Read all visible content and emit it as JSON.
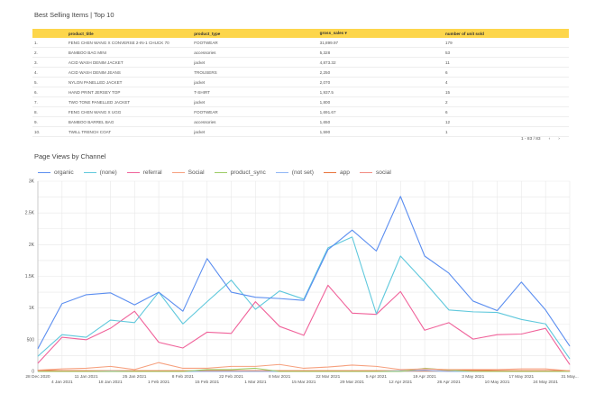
{
  "table": {
    "title": "Best Selling Items | Top 10",
    "columns": [
      "",
      "product_title",
      "product_type",
      "gross_sales ▾",
      "number of unit sold"
    ],
    "rows": [
      [
        "1.",
        "FENG CHEN WANG X CONVERSE 2-IN-1 CHUCK 70",
        "FOOTWEAR",
        "31,899.97",
        "179"
      ],
      [
        "2.",
        "BAMBOO BAG MINI",
        "accessories",
        "5,328",
        "53"
      ],
      [
        "3.",
        "ACID WASH DENIM JACKET",
        "jacket",
        "4,873.32",
        "11"
      ],
      [
        "4.",
        "ACID WASH DENIM JEANS",
        "TROUSERS",
        "2,250",
        "6"
      ],
      [
        "5.",
        "NYLON PANELLED JACKET",
        "jacket",
        "2,070",
        "4"
      ],
      [
        "6.",
        "HAND PRINT JERSEY TOP",
        "T-SHIRT",
        "1,937.5",
        "15"
      ],
      [
        "7.",
        "TWO TONE PANELLED JACKET",
        "jacket",
        "1,800",
        "2"
      ],
      [
        "8.",
        "FENG CHEN WANG X UGG",
        "FOOTWEAR",
        "1,691.67",
        "6"
      ],
      [
        "9.",
        "BAMBOO BARREL BAG",
        "accessories",
        "1,650",
        "12"
      ],
      [
        "10.",
        "TWILL TRENCH COAT",
        "jacket",
        "1,590",
        "1"
      ]
    ],
    "pagination": "1 - 83 / 83",
    "prev": "‹",
    "next": "›",
    "header_color": "#fdd64b"
  },
  "chart_data": {
    "type": "line",
    "title": "Page Views by Channel",
    "x": [
      "28 Dec 2020",
      "4 Jan 2021",
      "11 Jan 2021",
      "18 Jan 2021",
      "25 Jan 2021",
      "1 Feb 2021",
      "8 Feb 2021",
      "15 Feb 2021",
      "22 Feb 2021",
      "1 Mar 2021",
      "8 Mar 2021",
      "15 Mar 2021",
      "22 Mar 2021",
      "29 Mar 2021",
      "5 Apr 2021",
      "12 Apr 2021",
      "19 Apr 2021",
      "26 Apr 2021",
      "3 May 2021",
      "10 May 2021",
      "17 May 2021",
      "24 May 2021",
      "31 May..."
    ],
    "ylim": [
      0,
      3000
    ],
    "yticks": [
      "0",
      "500",
      "1K",
      "1.5K",
      "2K",
      "2.5K",
      "3K"
    ],
    "grid": true,
    "legend": "top",
    "series": [
      {
        "name": "organic",
        "color": "#5b8ef0",
        "values": [
          360,
          1070,
          1210,
          1240,
          1050,
          1250,
          950,
          1780,
          1250,
          1170,
          1150,
          1120,
          1920,
          2230,
          1900,
          2760,
          1820,
          1550,
          1110,
          960,
          1410,
          970,
          400
        ]
      },
      {
        "name": "(none)",
        "color": "#5fc8dc",
        "values": [
          240,
          580,
          540,
          810,
          770,
          1250,
          750,
          1100,
          1440,
          980,
          1270,
          1140,
          1950,
          2120,
          910,
          1820,
          1410,
          970,
          940,
          930,
          820,
          750,
          200
        ]
      },
      {
        "name": "referral",
        "color": "#f0629a",
        "values": [
          130,
          540,
          500,
          680,
          950,
          460,
          370,
          620,
          600,
          1100,
          710,
          570,
          1360,
          920,
          900,
          1260,
          650,
          770,
          510,
          580,
          590,
          680,
          110
        ]
      },
      {
        "name": "Social",
        "color": "#f6a07e",
        "values": [
          20,
          40,
          50,
          80,
          30,
          140,
          50,
          50,
          80,
          80,
          110,
          50,
          70,
          100,
          80,
          30,
          40,
          30,
          30,
          30,
          40,
          40,
          10
        ]
      },
      {
        "name": "product_sync",
        "color": "#9ccc65",
        "values": [
          0,
          0,
          0,
          0,
          0,
          0,
          0,
          30,
          30,
          50,
          0,
          0,
          0,
          0,
          0,
          0,
          50,
          20,
          0,
          0,
          0,
          0,
          0
        ]
      },
      {
        "name": "(not set)",
        "color": "#8fb6f5",
        "values": [
          0,
          0,
          0,
          5,
          0,
          0,
          0,
          0,
          0,
          0,
          0,
          0,
          0,
          0,
          0,
          10,
          20,
          0,
          0,
          0,
          0,
          0,
          0
        ]
      },
      {
        "name": "app",
        "color": "#e8743b",
        "values": [
          20,
          10,
          10,
          10,
          10,
          10,
          10,
          10,
          10,
          10,
          10,
          10,
          10,
          10,
          10,
          10,
          10,
          10,
          20,
          10,
          10,
          10,
          10
        ]
      },
      {
        "name": "social",
        "color": "#f28b82",
        "values": [
          10,
          10,
          10,
          10,
          10,
          10,
          10,
          10,
          10,
          10,
          10,
          10,
          10,
          10,
          10,
          10,
          10,
          10,
          10,
          10,
          10,
          10,
          10
        ]
      }
    ]
  }
}
